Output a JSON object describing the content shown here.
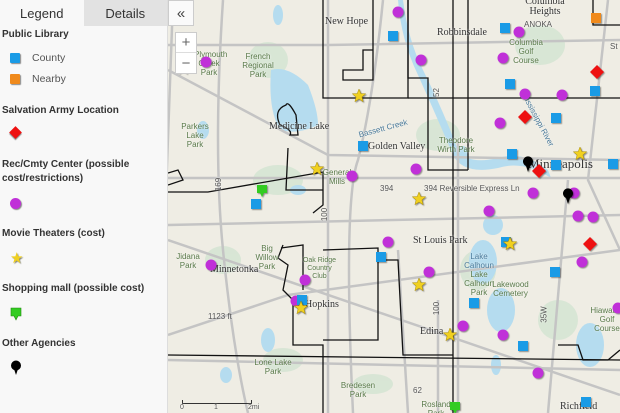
{
  "panel": {
    "tabs": [
      {
        "label": "Legend",
        "active": true
      },
      {
        "label": "Details",
        "active": false
      }
    ],
    "collapse_icon": "double-chevron-left-icon",
    "legend": {
      "public_library": {
        "title": "Public Library",
        "items": [
          {
            "label": "County",
            "color": "#1a9be6"
          },
          {
            "label": "Nearby",
            "color": "#f08a1c"
          }
        ]
      },
      "salvation_army": {
        "title": "Salvation Army Location",
        "color": "#ee1111"
      },
      "rec_center": {
        "title": "Rec/Cmty Center (possible cost/restrictions)",
        "color": "#c030d8"
      },
      "movie_theaters": {
        "title": "Movie Theaters (cost)",
        "color": "#f0d020"
      },
      "shopping_mall": {
        "title": "Shopping mall (possible cost)",
        "color": "#33cc22"
      },
      "other_agencies": {
        "title": "Other Agencies",
        "color": "#000000"
      }
    }
  },
  "map": {
    "zoom_in": "+",
    "zoom_out": "−",
    "places": [
      "New Hope",
      "Robbinsdale",
      "Columbia Heights",
      "Medicine Lake",
      "Golden Valley",
      "Minneapolis",
      "St Louis Park",
      "Minnetonka",
      "Hopkins",
      "Edina",
      "Richfield",
      "General Mills"
    ],
    "parks": [
      "French Regional Park",
      "Parkers Lake Park",
      "Plymouth Creek Park",
      "Jidana Park",
      "Big Willow Park",
      "Theodore Wirth Park",
      "Columbia Golf Course",
      "Lake Calhoun Park",
      "Lakewood Cemetery",
      "Hiawatha Golf Course",
      "Lone Lake Park",
      "Bredesen Park",
      "Rosland Park",
      "Oak Ridge Country Club"
    ],
    "water": [
      "Lake Calhoun",
      "Bassett Creek",
      "Mississippi River"
    ],
    "roads": [
      "394",
      "169",
      "100",
      "52",
      "35W",
      "62",
      "394 Reversible Express Ln"
    ],
    "elevation": "1123 ft",
    "scale": [
      "0",
      "1",
      "2mi"
    ],
    "other_text": [
      "ANOKA",
      "St"
    ]
  }
}
